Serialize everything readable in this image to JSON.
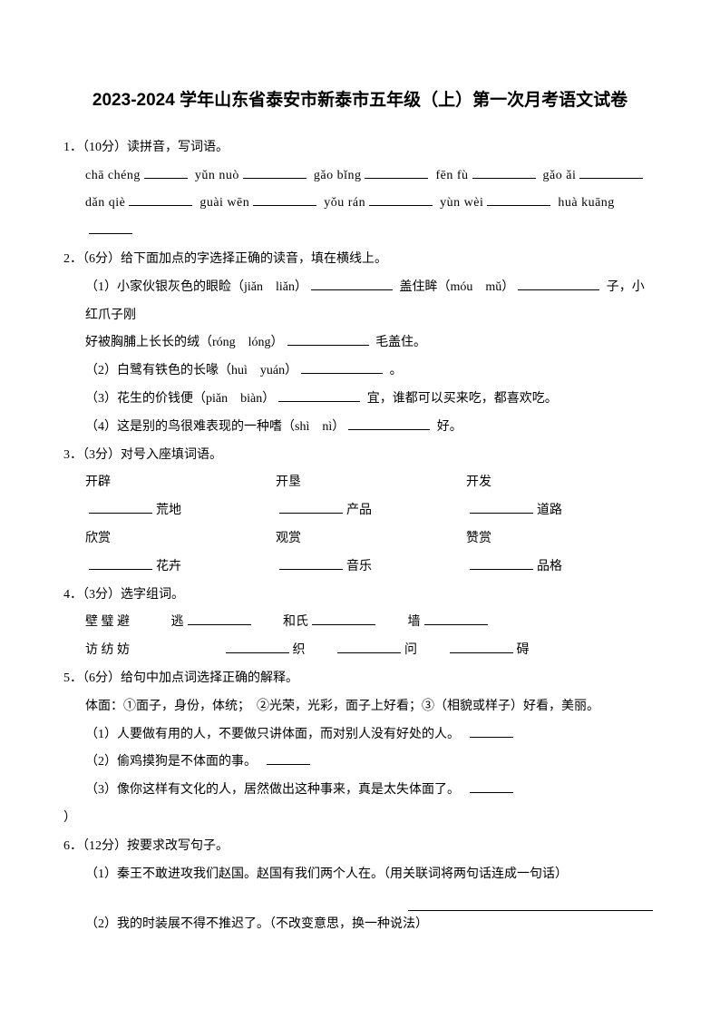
{
  "title": "2023-2024 学年山东省泰安市新泰市五年级（上）第一次月考语文试卷",
  "q1": {
    "head": "1．（10分）读拼音，写词语。",
    "line1": [
      "chā chéng",
      "yǔn nuò",
      "gǎo bǐng",
      "fēn fù",
      "gǎo ǎi"
    ],
    "line2": [
      "dǎn qiè",
      "guài wēn",
      "yǒu rán",
      "yùn wèi",
      "huà kuāng"
    ]
  },
  "q2": {
    "head": "2．（6分）给下面加点的字选择正确的读音，填在横线上。",
    "s1a": "（1）小家伙银灰色的眼睑（jiǎn　liǎn）",
    "s1b": "盖住眸（móu　mǔ）",
    "s1c": "子，小红爪子刚",
    "s1d": "好被胸脯上长长的绒（róng　lóng）",
    "s1e": "毛盖住。",
    "s2": "（2）白鹭有铁色的长喙（huì　yuán）",
    "s2b": "。",
    "s3": "（3）花生的价钱便（piǎn　biàn）",
    "s3b": "宜，谁都可以买来吃，都喜欢吃。",
    "s4": "（4）这是别的鸟很难表现的一种嗜（shì　nì）",
    "s4b": "好。"
  },
  "q3": {
    "head": "3．（3分）对号入座填词语。",
    "r1": [
      "开辟",
      "开垦",
      "开发"
    ],
    "r2": [
      "荒地",
      "产品",
      "道路"
    ],
    "r3": [
      "欣赏",
      "观赏",
      "赞赏"
    ],
    "r4": [
      "花卉",
      "音乐",
      "品格"
    ]
  },
  "q4": {
    "head": "4．（3分）选字组词。",
    "l1a": "壁 璧 避",
    "l1b": "逃",
    "l1c": "和氏",
    "l1d": "墙",
    "l2a": "访 纺 妨",
    "l2b": "织",
    "l2c": "问",
    "l2d": "碍"
  },
  "q5": {
    "head": "5．（6分）给句中加点词选择正确的解释。",
    "def": "体面：①面子，身份，体统；　②光荣，光彩，面子上好看；③（相貌或样子）好看，美丽。",
    "s1": "（1）人要做有用的人，不要做只讲体面，而对别人没有好处的人。",
    "s2": "（2）偷鸡摸狗是不体面的事。",
    "s3": "（3）像你这样有文化的人，居然做出这种事来，真是太失体面了。",
    "tail": "）"
  },
  "q6": {
    "head": "6．（12分）按要求改写句子。",
    "s1": "（1）秦王不敢进攻我们赵国。赵国有我们两个人在。（用关联词将两句话连成一句话）",
    "s2": "（2）我的时装展不得不推迟了。（不改变意思，换一种说法）"
  }
}
